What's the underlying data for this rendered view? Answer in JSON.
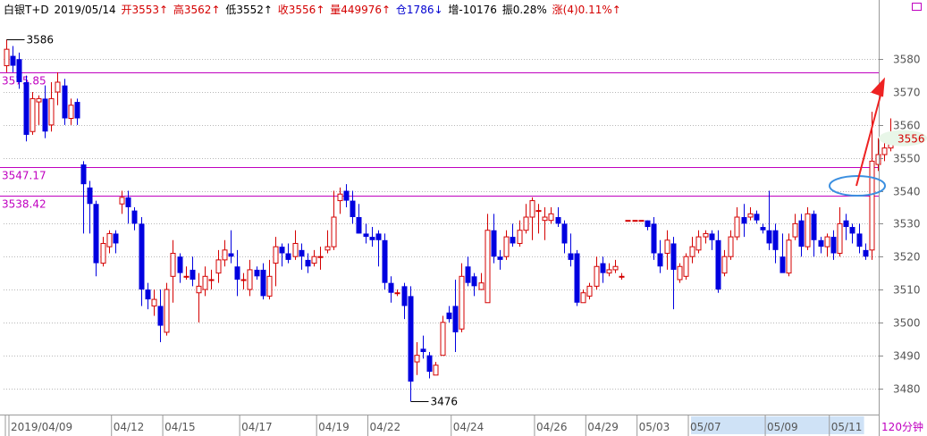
{
  "header": {
    "symbol": "白银T+D",
    "date": "2019/05/14",
    "open": "开3553↑",
    "high": "高3562↑",
    "low": "低3552↑",
    "close": "收3556↑",
    "volume": "量449976↑",
    "position": "仓1786↓",
    "increase": "增-10176",
    "amplitude": "振0.28%",
    "change": "涨(4)0.11%↑"
  },
  "period_label": "120分钟",
  "colors": {
    "up": "#d40000",
    "down": "#0000e0",
    "level_line": "#c000c0",
    "grid": "#b8b8b8",
    "annotation_arrow": "#ee2222",
    "annotation_ellipse": "#3b8fe0",
    "date_highlight": "#cfe2f6"
  },
  "chart_data": {
    "type": "candlestick",
    "title": "",
    "ylim": [
      3472,
      3592
    ],
    "y_ticks": [
      3480,
      3490,
      3500,
      3510,
      3520,
      3530,
      3540,
      3550,
      3560,
      3570,
      3580
    ],
    "x_tick_labels": [
      "2019/04/09",
      "04/12",
      "04/15",
      "04/17",
      "04/19",
      "04/22",
      "04/24",
      "04/26",
      "04/29",
      "05/03",
      "05/07",
      "05/09",
      "05/11"
    ],
    "x_tick_positions": [
      0,
      16,
      24,
      36,
      48,
      56,
      69,
      82,
      90,
      98,
      106,
      118,
      128
    ],
    "highlighted_tick_range": [
      106,
      133
    ],
    "levels": [
      {
        "label": "3575.85",
        "value": 3575.85
      },
      {
        "label": "3547.17",
        "value": 3547.17
      },
      {
        "label": "3538.42",
        "value": 3538.42
      }
    ],
    "current_price": {
      "label": "3556",
      "value": 3556
    },
    "extreme_labels": [
      {
        "label": "3586",
        "index": 0,
        "value": 3586
      },
      {
        "label": "3476",
        "index": 63,
        "value": 3476
      }
    ],
    "candles": [
      [
        3578,
        3583,
        3586,
        3576
      ],
      [
        3581,
        3578,
        3584,
        3576
      ],
      [
        3580,
        3573,
        3582,
        3571
      ],
      [
        3573,
        3557,
        3575,
        3555
      ],
      [
        3558,
        3568,
        3570,
        3557
      ],
      [
        3567,
        3568,
        3569,
        3560
      ],
      [
        3568,
        3558,
        3572,
        3556
      ],
      [
        3560,
        3568,
        3573,
        3558
      ],
      [
        3570,
        3573,
        3576,
        3566
      ],
      [
        3572,
        3562,
        3574,
        3560
      ],
      [
        3562,
        3566,
        3568,
        3560
      ],
      [
        3567,
        3562,
        3568,
        3560
      ],
      [
        3548,
        3542,
        3549,
        3527
      ],
      [
        3541,
        3536,
        3543,
        3527
      ],
      [
        3536,
        3518,
        3537,
        3514
      ],
      [
        3518,
        3524,
        3526,
        3517
      ],
      [
        3523,
        3527,
        3528,
        3521
      ],
      [
        3527,
        3524,
        3528,
        3521
      ],
      [
        3536,
        3538,
        3540,
        3533
      ],
      [
        3538,
        3535,
        3540,
        3530
      ],
      [
        3534,
        3530,
        3535,
        3528
      ],
      [
        3530,
        3510,
        3532,
        3505
      ],
      [
        3510,
        3507,
        3512,
        3504
      ],
      [
        3505,
        3507,
        3510,
        3502
      ],
      [
        3505,
        3499,
        3510,
        3494
      ],
      [
        3497,
        3510,
        3512,
        3496
      ],
      [
        3514,
        3521,
        3525,
        3506
      ],
      [
        3520,
        3515,
        3521,
        3512
      ],
      [
        3514,
        3514,
        3517,
        3513
      ],
      [
        3516,
        3513,
        3520,
        3511
      ],
      [
        3509,
        3511,
        3515,
        3500
      ],
      [
        3510,
        3514,
        3517,
        3508
      ],
      [
        3513,
        3513,
        3516,
        3510
      ],
      [
        3515,
        3519,
        3522,
        3512
      ],
      [
        3519,
        3522,
        3525,
        3517
      ],
      [
        3521,
        3520,
        3528,
        3518
      ],
      [
        3517,
        3513,
        3522,
        3508
      ],
      [
        3513,
        3513,
        3515,
        3510
      ],
      [
        3510,
        3516,
        3519,
        3508
      ],
      [
        3516,
        3514,
        3517,
        3513
      ],
      [
        3516,
        3508,
        3518,
        3507
      ],
      [
        3508,
        3514,
        3519,
        3507
      ],
      [
        3518,
        3523,
        3526,
        3511
      ],
      [
        3523,
        3521,
        3524,
        3517
      ],
      [
        3521,
        3519,
        3524,
        3518
      ],
      [
        3520,
        3524,
        3528,
        3519
      ],
      [
        3522,
        3520,
        3524,
        3516
      ],
      [
        3519,
        3517,
        3521,
        3515
      ],
      [
        3518,
        3520,
        3522,
        3517
      ],
      [
        3520,
        3520,
        3523,
        3516
      ],
      [
        3522,
        3523,
        3528,
        3521
      ],
      [
        3523,
        3532,
        3540,
        3522
      ],
      [
        3537,
        3539,
        3541,
        3533
      ],
      [
        3540,
        3537,
        3542,
        3535
      ],
      [
        3537,
        3532,
        3540,
        3530
      ],
      [
        3532,
        3527,
        3536,
        3527
      ],
      [
        3527,
        3526,
        3530,
        3524
      ],
      [
        3526,
        3525,
        3529,
        3523
      ],
      [
        3527,
        3525,
        3528,
        3517
      ],
      [
        3525,
        3512,
        3527,
        3510
      ],
      [
        3512,
        3509,
        3514,
        3506
      ],
      [
        3509,
        3509,
        3510,
        3508
      ],
      [
        3511,
        3505,
        3512,
        3501
      ],
      [
        3508,
        3482,
        3511,
        3476
      ],
      [
        3488,
        3490,
        3494,
        3484
      ],
      [
        3492,
        3491,
        3496,
        3489
      ],
      [
        3490,
        3485,
        3491,
        3483
      ],
      [
        3484,
        3487,
        3488,
        3485
      ],
      [
        3490,
        3500,
        3502,
        3499
      ],
      [
        3503,
        3501,
        3505,
        3500
      ],
      [
        3505,
        3497,
        3513,
        3491
      ],
      [
        3498,
        3514,
        3518,
        3497
      ],
      [
        3517,
        3512,
        3520,
        3511
      ],
      [
        3514,
        3511,
        3515,
        3508
      ],
      [
        3510,
        3512,
        3515,
        3510
      ],
      [
        3506,
        3528,
        3533,
        3506
      ],
      [
        3528,
        3520,
        3533,
        3518
      ],
      [
        3520,
        3519,
        3522,
        3516
      ],
      [
        3520,
        3526,
        3528,
        3519
      ],
      [
        3526,
        3524,
        3530,
        3523
      ],
      [
        3524,
        3528,
        3531,
        3523
      ],
      [
        3528,
        3532,
        3536,
        3527
      ],
      [
        3532,
        3537,
        3538,
        3525
      ],
      [
        3534,
        3534,
        3536,
        3527
      ],
      [
        3531,
        3532,
        3535,
        3525
      ],
      [
        3531,
        3533,
        3535,
        3530
      ],
      [
        3532,
        3530,
        3535,
        3529
      ],
      [
        3530,
        3524,
        3531,
        3521
      ],
      [
        3521,
        3519,
        3527,
        3517
      ],
      [
        3521,
        3506,
        3522,
        3505
      ],
      [
        3506,
        3509,
        3510,
        3506
      ],
      [
        3508,
        3511,
        3512,
        3507
      ],
      [
        3511,
        3517,
        3520,
        3510
      ],
      [
        3518,
        3515,
        3520,
        3512
      ],
      [
        3515,
        3516,
        3518,
        3514
      ],
      [
        3516,
        3517,
        3519,
        3515
      ],
      [
        3514,
        3514,
        3515,
        3513
      ],
      [
        3531,
        3531,
        3531,
        3531
      ],
      [
        3531,
        3531,
        3531,
        3531
      ],
      [
        3531,
        3531,
        3531,
        3531
      ],
      [
        3531,
        3529,
        3531,
        3528
      ],
      [
        3530,
        3521,
        3532,
        3519
      ],
      [
        3521,
        3517,
        3525,
        3515
      ],
      [
        3521,
        3525,
        3528,
        3516
      ],
      [
        3524,
        3516,
        3526,
        3504
      ],
      [
        3513,
        3517,
        3518,
        3512
      ],
      [
        3514,
        3520,
        3521,
        3513
      ],
      [
        3520,
        3523,
        3526,
        3518
      ],
      [
        3522,
        3526,
        3528,
        3521
      ],
      [
        3526,
        3527,
        3528,
        3524
      ],
      [
        3527,
        3525,
        3528,
        3522
      ],
      [
        3525,
        3510,
        3528,
        3509
      ],
      [
        3515,
        3520,
        3522,
        3514
      ],
      [
        3520,
        3526,
        3528,
        3519
      ],
      [
        3526,
        3532,
        3535,
        3525
      ],
      [
        3532,
        3530,
        3536,
        3526
      ],
      [
        3532,
        3533,
        3535,
        3531
      ],
      [
        3533,
        3531,
        3534,
        3530
      ],
      [
        3529,
        3528,
        3530,
        3527
      ],
      [
        3528,
        3524,
        3540,
        3522
      ],
      [
        3528,
        3522,
        3530,
        3518
      ],
      [
        3520,
        3515,
        3527,
        3517
      ],
      [
        3515,
        3525,
        3527,
        3514
      ],
      [
        3526,
        3530,
        3533,
        3525
      ],
      [
        3531,
        3523,
        3533,
        3520
      ],
      [
        3523,
        3533,
        3535,
        3522
      ],
      [
        3533,
        3525,
        3534,
        3520
      ],
      [
        3525,
        3523,
        3526,
        3521
      ],
      [
        3523,
        3526,
        3527,
        3520
      ],
      [
        3526,
        3521,
        3528,
        3519
      ],
      [
        3521,
        3530,
        3535,
        3520
      ],
      [
        3531,
        3529,
        3533,
        3525
      ],
      [
        3529,
        3527,
        3530,
        3524
      ],
      [
        3527,
        3523,
        3530,
        3521
      ],
      [
        3522,
        3520,
        3524,
        3519
      ],
      [
        3522,
        3549,
        3564,
        3519
      ],
      [
        3548,
        3551,
        3556,
        3546
      ],
      [
        3551,
        3553,
        3557,
        3549
      ],
      [
        3553,
        3556,
        3562,
        3552
      ]
    ]
  }
}
